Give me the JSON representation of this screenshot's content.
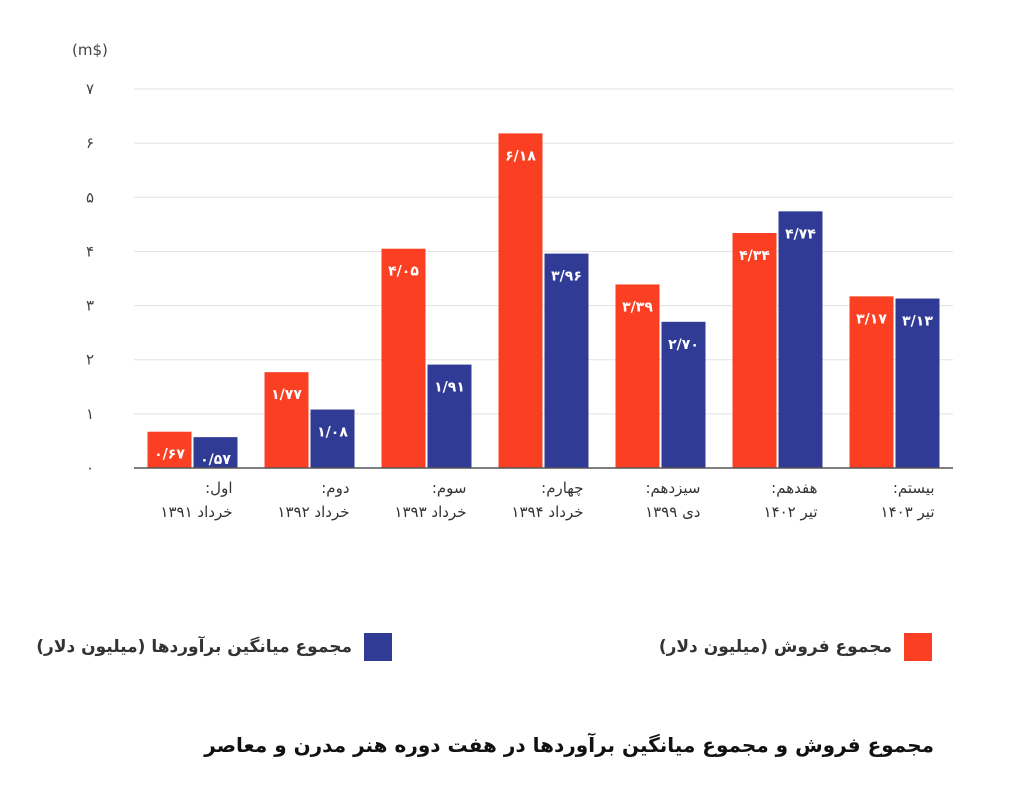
{
  "chart_data": {
    "type": "bar",
    "title": "مجموع فروش و مجموع میانگین برآوردها در هفت دوره هنر مدرن و معاصر",
    "ylabel": "(m$)",
    "xlabel": "",
    "ylim": [
      0,
      7
    ],
    "yticks": [
      "۰",
      "۱",
      "۲",
      "۳",
      "۴",
      "۵",
      "۶",
      "۷"
    ],
    "categories": [
      [
        "اول:",
        "خرداد ۱۳۹۱"
      ],
      [
        "دوم:",
        "خرداد ۱۳۹۲"
      ],
      [
        "سوم:",
        "خرداد ۱۳۹۳"
      ],
      [
        "چهارم:",
        "خرداد ۱۳۹۴"
      ],
      [
        "سیزدهم:",
        "دی ۱۳۹۹"
      ],
      [
        "هفدهم:",
        "تیر ۱۴۰۲"
      ],
      [
        "بیستم:",
        "تیر ۱۴۰۳"
      ]
    ],
    "series": [
      {
        "name": "مجموع فروش (میلیون دلار)",
        "color": "#fb3f23",
        "values": [
          0.67,
          1.77,
          4.05,
          6.18,
          3.39,
          4.34,
          3.17
        ],
        "labels": [
          "۰/۶۷",
          "۱/۷۷",
          "۴/۰۵",
          "۶/۱۸",
          "۳/۳۹",
          "۴/۳۴",
          "۳/۱۷"
        ]
      },
      {
        "name": "مجموع میانگین برآوردها (میلیون دلار)",
        "color": "#303b96",
        "values": [
          0.57,
          1.08,
          1.91,
          3.96,
          2.7,
          4.74,
          3.13
        ],
        "labels": [
          "۰/۵۷",
          "۱/۰۸",
          "۱/۹۱",
          "۳/۹۶",
          "۲/۷۰",
          "۴/۷۴",
          "۳/۱۳"
        ]
      }
    ],
    "grid": true,
    "legend_position": "bottom"
  }
}
